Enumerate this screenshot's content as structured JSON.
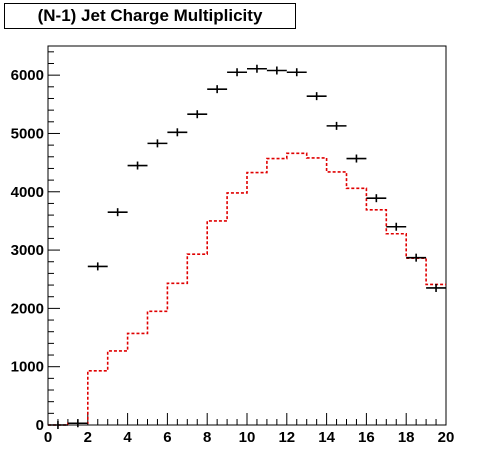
{
  "chart_data": {
    "type": "histogram",
    "title": "(N-1) Jet Charge Multiplicity",
    "xlim": [
      0,
      20
    ],
    "ylim": [
      0,
      6500
    ],
    "x_ticks": [
      0,
      2,
      4,
      6,
      8,
      10,
      12,
      14,
      16,
      18,
      20
    ],
    "y_ticks": [
      0,
      1000,
      2000,
      3000,
      4000,
      5000,
      6000
    ],
    "bin_width": 1,
    "bin_centers": [
      0.5,
      1.5,
      2.5,
      3.5,
      4.5,
      5.5,
      6.5,
      7.5,
      8.5,
      9.5,
      10.5,
      11.5,
      12.5,
      13.5,
      14.5,
      15.5,
      16.5,
      17.5,
      18.5,
      19.5
    ],
    "series": [
      {
        "style": "data-points",
        "color": "#000000",
        "values": [
          0,
          30,
          2720,
          3650,
          4450,
          4830,
          5020,
          5330,
          5760,
          6050,
          6110,
          6080,
          6050,
          5640,
          5130,
          4570,
          3890,
          3400,
          2870,
          2350
        ]
      },
      {
        "style": "step-dashed",
        "color": "#e00000",
        "values": [
          0,
          30,
          930,
          1270,
          1570,
          1950,
          2430,
          2930,
          3500,
          3980,
          4330,
          4570,
          4660,
          4580,
          4340,
          4060,
          3690,
          3280,
          2860,
          2410
        ]
      }
    ]
  }
}
